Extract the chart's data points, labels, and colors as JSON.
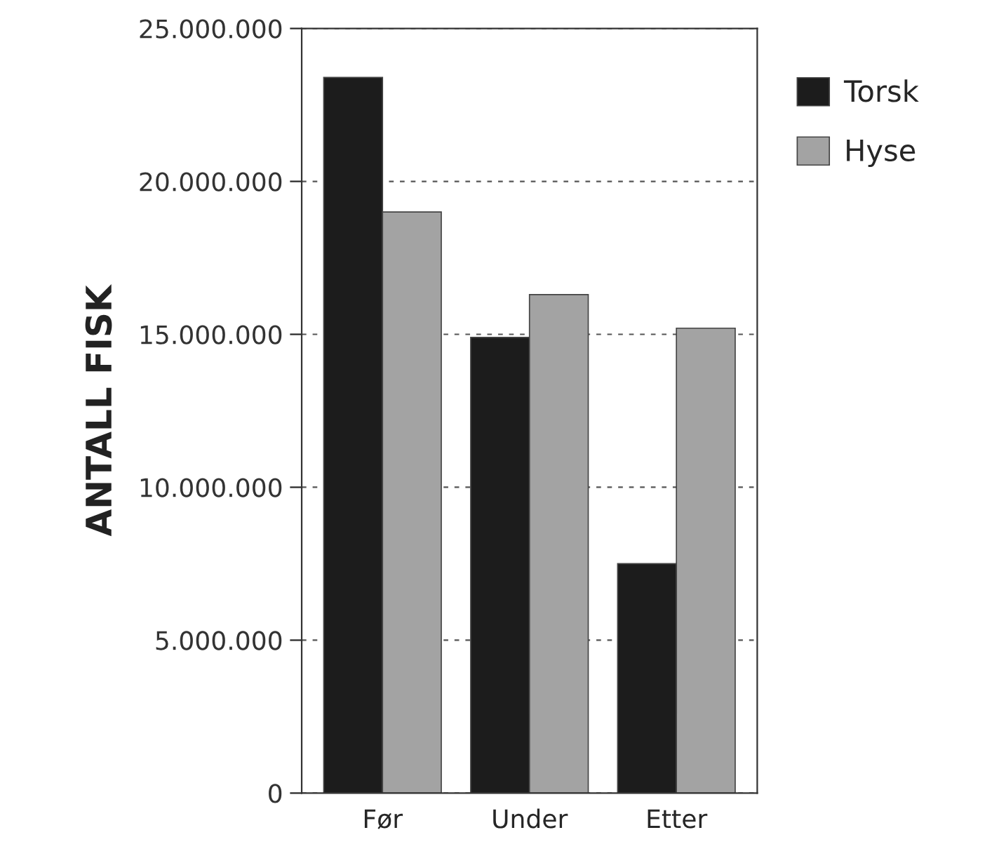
{
  "chart_data": {
    "type": "bar",
    "ylabel": "ANTALL FISK",
    "categories": [
      "Før",
      "Under",
      "Etter"
    ],
    "series": [
      {
        "name": "Torsk",
        "color": "#1c1c1c",
        "values": [
          23400000,
          14900000,
          7500000
        ]
      },
      {
        "name": "Hyse",
        "color": "#a3a3a3",
        "values": [
          19000000,
          16300000,
          15200000
        ]
      }
    ],
    "ylim": [
      0,
      25000000
    ],
    "yticks": [
      {
        "value": 0,
        "label": "0"
      },
      {
        "value": 5000000,
        "label": "5.000.000"
      },
      {
        "value": 10000000,
        "label": "10.000.000"
      },
      {
        "value": 15000000,
        "label": "15.000.000"
      },
      {
        "value": 20000000,
        "label": "20.000.000"
      },
      {
        "value": 25000000,
        "label": "25.000.000"
      }
    ],
    "grid": "y",
    "legend": "top right"
  }
}
